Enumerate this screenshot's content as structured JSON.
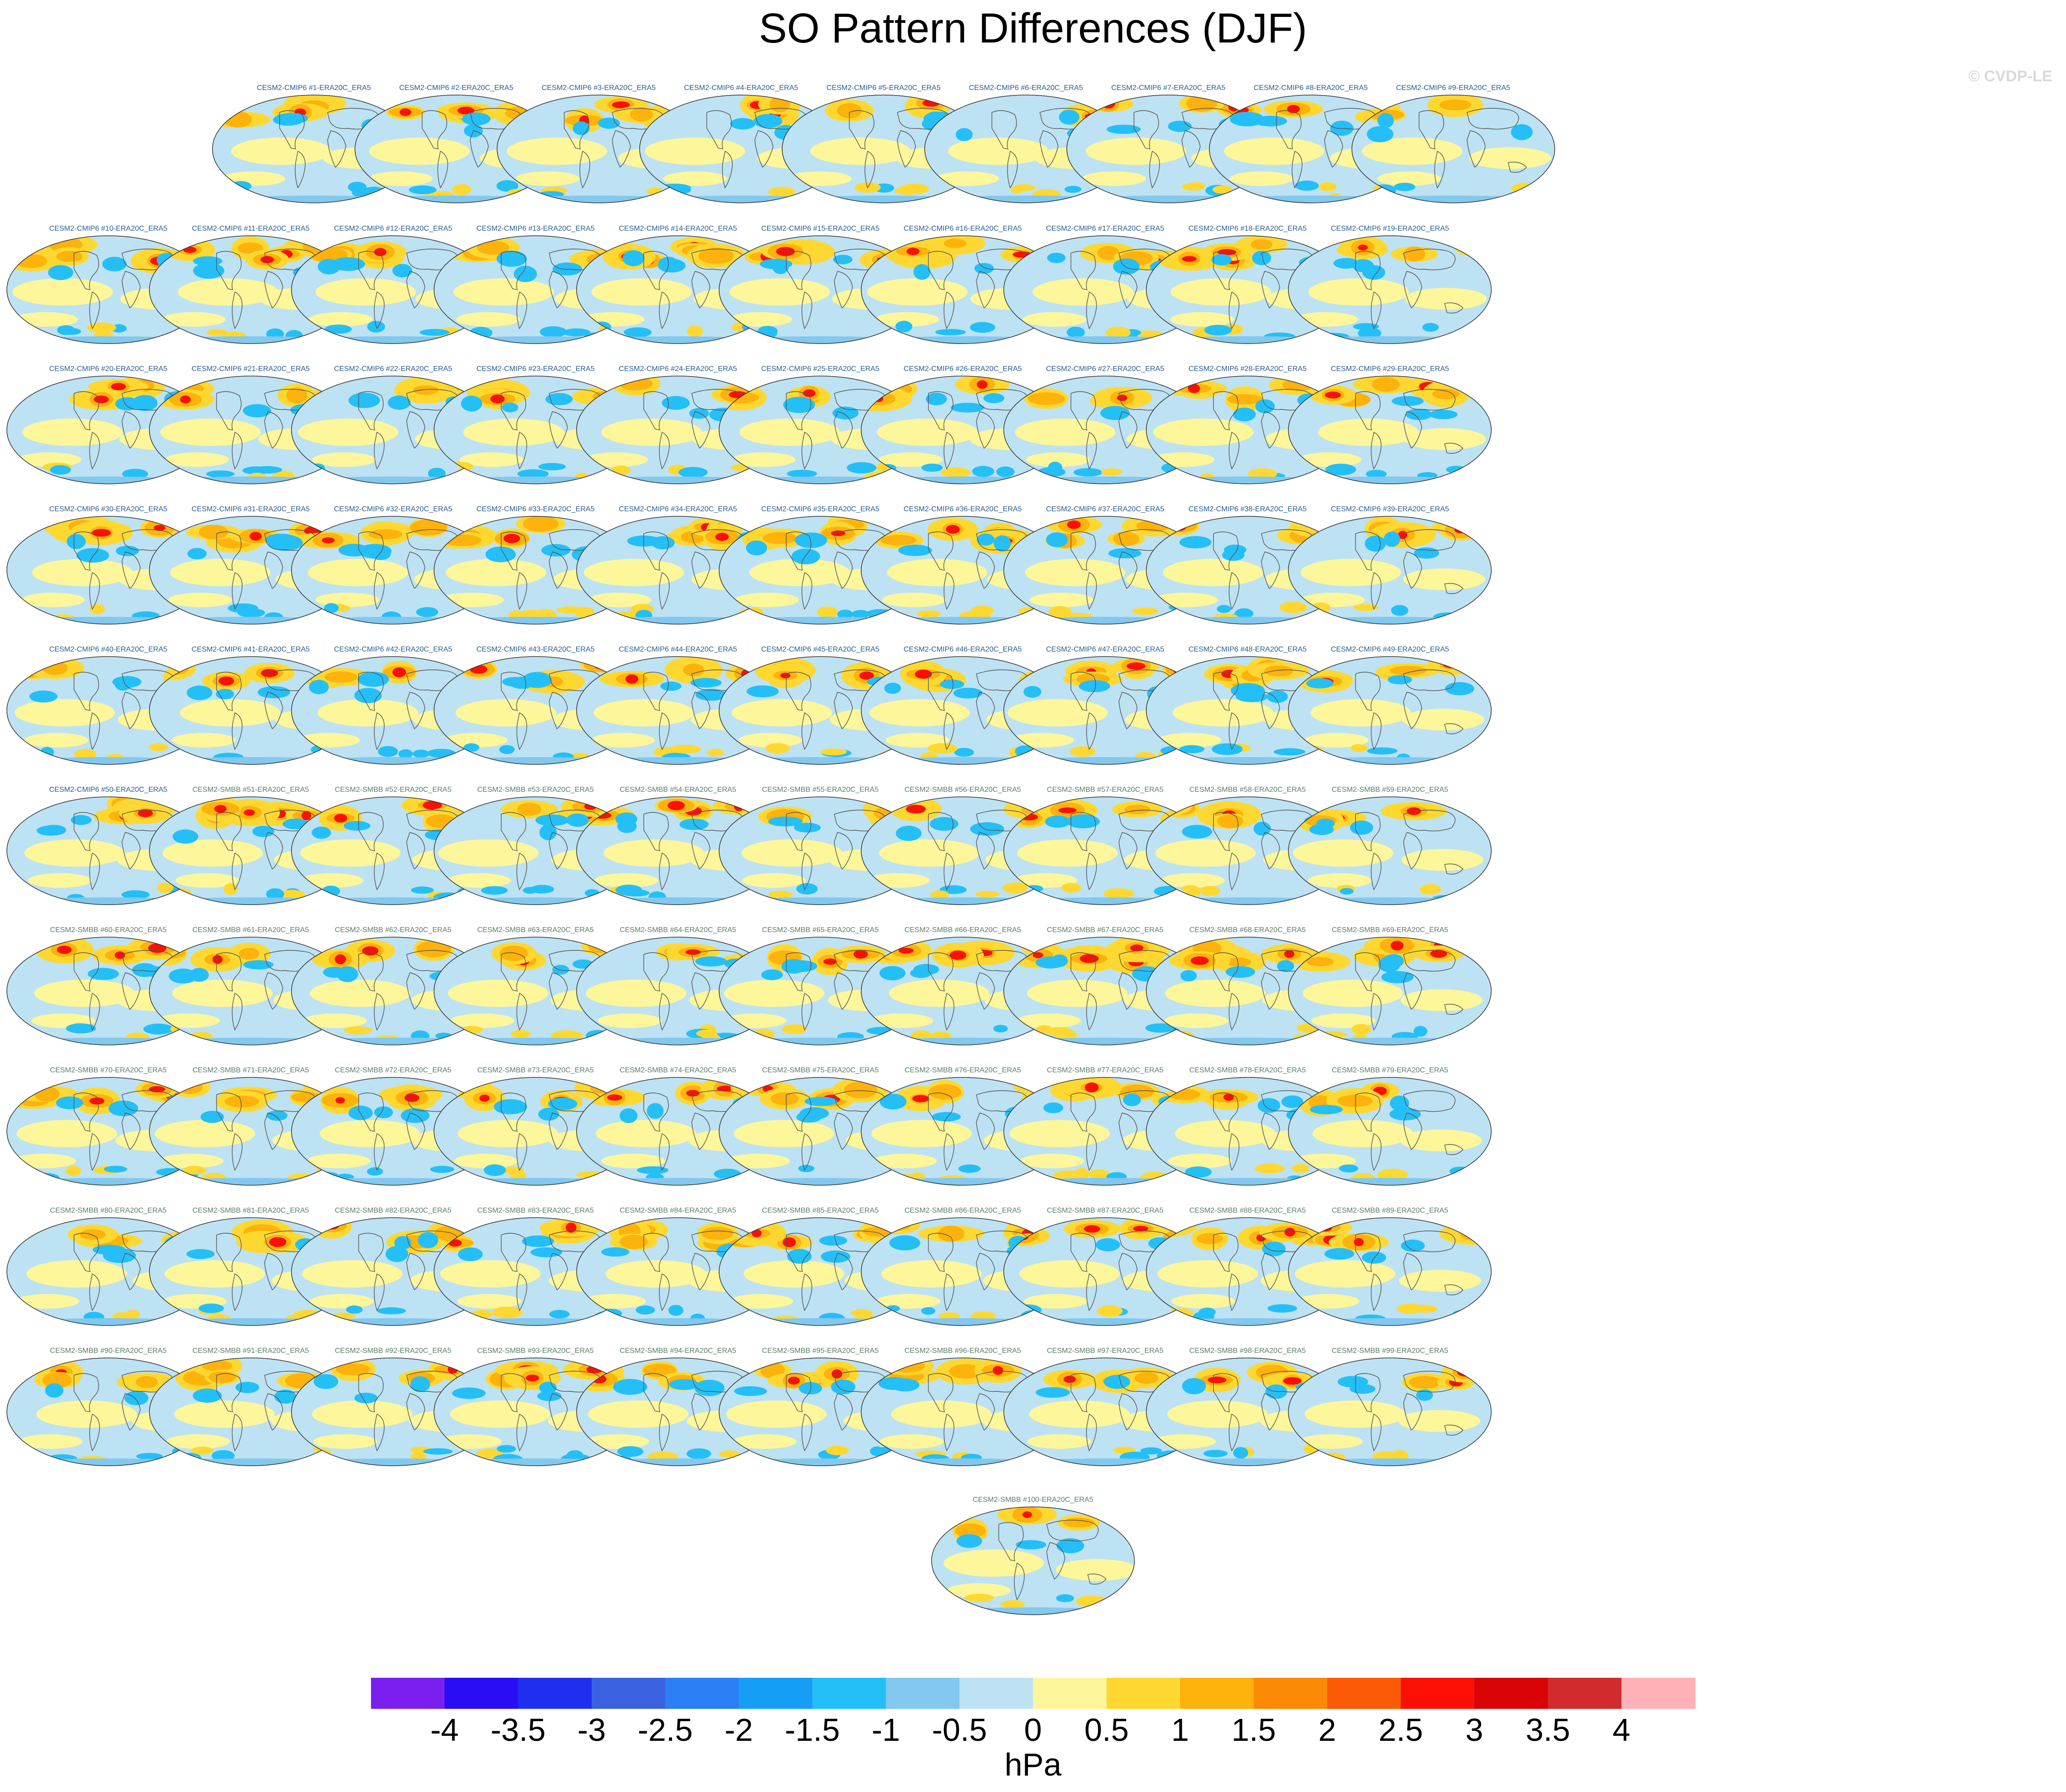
{
  "title": "SO Pattern Differences (DJF)",
  "copyright": "© CVDP-LE",
  "colorbar": {
    "units": "hPa",
    "ticks": [
      "-4",
      "-3.5",
      "-3",
      "-2.5",
      "-2",
      "-1.5",
      "-1",
      "-0.5",
      "0",
      "0.5",
      "1",
      "1.5",
      "2",
      "2.5",
      "3",
      "3.5",
      "4"
    ],
    "colors": [
      "#7a1ff0",
      "#2a0df5",
      "#1f2ff0",
      "#3a62e0",
      "#2c7ff5",
      "#169ef7",
      "#25bff7",
      "#82c8ef",
      "#bde2f3",
      "#fdf69a",
      "#fed830",
      "#fdb20c",
      "#fd8a07",
      "#fc5a06",
      "#fc1006",
      "#d80406",
      "#d12b2e",
      "#feb1b6"
    ]
  },
  "panels": [
    "CESM2-CMIP6 #1-ERA20C_ERA5",
    "CESM2-CMIP6 #2-ERA20C_ERA5",
    "CESM2-CMIP6 #3-ERA20C_ERA5",
    "CESM2-CMIP6 #4-ERA20C_ERA5",
    "CESM2-CMIP6 #5-ERA20C_ERA5",
    "CESM2-CMIP6 #6-ERA20C_ERA5",
    "CESM2-CMIP6 #7-ERA20C_ERA5",
    "CESM2-CMIP6 #8-ERA20C_ERA5",
    "CESM2-CMIP6 #9-ERA20C_ERA5",
    "CESM2-CMIP6 #10-ERA20C_ERA5",
    "CESM2-CMIP6 #11-ERA20C_ERA5",
    "CESM2-CMIP6 #12-ERA20C_ERA5",
    "CESM2-CMIP6 #13-ERA20C_ERA5",
    "CESM2-CMIP6 #14-ERA20C_ERA5",
    "CESM2-CMIP6 #15-ERA20C_ERA5",
    "CESM2-CMIP6 #16-ERA20C_ERA5",
    "CESM2-CMIP6 #17-ERA20C_ERA5",
    "CESM2-CMIP6 #18-ERA20C_ERA5",
    "CESM2-CMIP6 #19-ERA20C_ERA5",
    "CESM2-CMIP6 #20-ERA20C_ERA5",
    "CESM2-CMIP6 #21-ERA20C_ERA5",
    "CESM2-CMIP6 #22-ERA20C_ERA5",
    "CESM2-CMIP6 #23-ERA20C_ERA5",
    "CESM2-CMIP6 #24-ERA20C_ERA5",
    "CESM2-CMIP6 #25-ERA20C_ERA5",
    "CESM2-CMIP6 #26-ERA20C_ERA5",
    "CESM2-CMIP6 #27-ERA20C_ERA5",
    "CESM2-CMIP6 #28-ERA20C_ERA5",
    "CESM2-CMIP6 #29-ERA20C_ERA5",
    "CESM2-CMIP6 #30-ERA20C_ERA5",
    "CESM2-CMIP6 #31-ERA20C_ERA5",
    "CESM2-CMIP6 #32-ERA20C_ERA5",
    "CESM2-CMIP6 #33-ERA20C_ERA5",
    "CESM2-CMIP6 #34-ERA20C_ERA5",
    "CESM2-CMIP6 #35-ERA20C_ERA5",
    "CESM2-CMIP6 #36-ERA20C_ERA5",
    "CESM2-CMIP6 #37-ERA20C_ERA5",
    "CESM2-CMIP6 #38-ERA20C_ERA5",
    "CESM2-CMIP6 #39-ERA20C_ERA5",
    "CESM2-CMIP6 #40-ERA20C_ERA5",
    "CESM2-CMIP6 #41-ERA20C_ERA5",
    "CESM2-CMIP6 #42-ERA20C_ERA5",
    "CESM2-CMIP6 #43-ERA20C_ERA5",
    "CESM2-CMIP6 #44-ERA20C_ERA5",
    "CESM2-CMIP6 #45-ERA20C_ERA5",
    "CESM2-CMIP6 #46-ERA20C_ERA5",
    "CESM2-CMIP6 #47-ERA20C_ERA5",
    "CESM2-CMIP6 #48-ERA20C_ERA5",
    "CESM2-CMIP6 #49-ERA20C_ERA5",
    "CESM2-CMIP6 #50-ERA20C_ERA5",
    "CESM2-SMBB #51-ERA20C_ERA5",
    "CESM2-SMBB #52-ERA20C_ERA5",
    "CESM2-SMBB #53-ERA20C_ERA5",
    "CESM2-SMBB #54-ERA20C_ERA5",
    "CESM2-SMBB #55-ERA20C_ERA5",
    "CESM2-SMBB #56-ERA20C_ERA5",
    "CESM2-SMBB #57-ERA20C_ERA5",
    "CESM2-SMBB #58-ERA20C_ERA5",
    "CESM2-SMBB #59-ERA20C_ERA5",
    "CESM2-SMBB #60-ERA20C_ERA5",
    "CESM2-SMBB #61-ERA20C_ERA5",
    "CESM2-SMBB #62-ERA20C_ERA5",
    "CESM2-SMBB #63-ERA20C_ERA5",
    "CESM2-SMBB #64-ERA20C_ERA5",
    "CESM2-SMBB #65-ERA20C_ERA5",
    "CESM2-SMBB #66-ERA20C_ERA5",
    "CESM2-SMBB #67-ERA20C_ERA5",
    "CESM2-SMBB #68-ERA20C_ERA5",
    "CESM2-SMBB #69-ERA20C_ERA5",
    "CESM2-SMBB #70-ERA20C_ERA5",
    "CESM2-SMBB #71-ERA20C_ERA5",
    "CESM2-SMBB #72-ERA20C_ERA5",
    "CESM2-SMBB #73-ERA20C_ERA5",
    "CESM2-SMBB #74-ERA20C_ERA5",
    "CESM2-SMBB #75-ERA20C_ERA5",
    "CESM2-SMBB #76-ERA20C_ERA5",
    "CESM2-SMBB #77-ERA20C_ERA5",
    "CESM2-SMBB #78-ERA20C_ERA5",
    "CESM2-SMBB #79-ERA20C_ERA5",
    "CESM2-SMBB #80-ERA20C_ERA5",
    "CESM2-SMBB #81-ERA20C_ERA5",
    "CESM2-SMBB #82-ERA20C_ERA5",
    "CESM2-SMBB #83-ERA20C_ERA5",
    "CESM2-SMBB #84-ERA20C_ERA5",
    "CESM2-SMBB #85-ERA20C_ERA5",
    "CESM2-SMBB #86-ERA20C_ERA5",
    "CESM2-SMBB #87-ERA20C_ERA5",
    "CESM2-SMBB #88-ERA20C_ERA5",
    "CESM2-SMBB #89-ERA20C_ERA5",
    "CESM2-SMBB #90-ERA20C_ERA5",
    "CESM2-SMBB #91-ERA20C_ERA5",
    "CESM2-SMBB #92-ERA20C_ERA5",
    "CESM2-SMBB #93-ERA20C_ERA5",
    "CESM2-SMBB #94-ERA20C_ERA5",
    "CESM2-SMBB #95-ERA20C_ERA5",
    "CESM2-SMBB #96-ERA20C_ERA5",
    "CESM2-SMBB #97-ERA20C_ERA5",
    "CESM2-SMBB #98-ERA20C_ERA5",
    "CESM2-SMBB #99-ERA20C_ERA5",
    "CESM2-SMBB #100-ERA20C_ERA5"
  ]
}
